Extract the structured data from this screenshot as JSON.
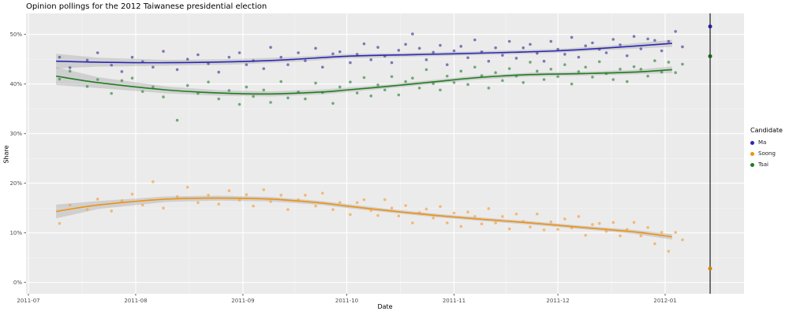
{
  "chart_data": {
    "type": "scatter",
    "title": "Opinion pollings for the 2012 Taiwanese presidential election",
    "xlabel": "Date",
    "ylabel": "Share",
    "axes": {
      "x_tick_labels": [
        "2011-07",
        "2011-08",
        "2011-09",
        "2011-10",
        "2011-11",
        "2011-12",
        "2012-01"
      ],
      "x_tick_days": [
        0,
        31,
        62,
        92,
        123,
        153,
        184
      ],
      "x_minor_days": [
        15.5,
        46.5,
        77,
        107.5,
        138,
        168.5,
        199
      ],
      "y_tick_labels": [
        "0%",
        "10%",
        "20%",
        "30%",
        "40%",
        "50%"
      ],
      "y_tick_pcts": [
        0,
        10,
        20,
        30,
        40,
        50
      ],
      "y_minor_pcts": [
        5,
        15,
        25,
        35,
        45
      ],
      "x_range_days": [
        -1,
        207
      ],
      "ylim": [
        -2.3,
        54.2
      ],
      "grid": true
    },
    "election_vline_day": 197,
    "layout": {
      "panel_bg": "#ebebeb",
      "grid_color": "#ffffff",
      "band_color": "#8f8f8f",
      "vline_color": "#3a3a3a",
      "tick_text_color": "#4d4d4d",
      "legend_position": "right"
    },
    "series": [
      {
        "name": "Ma",
        "point_color": "#55519f",
        "line_color": "#2b28b4",
        "result_color": "#23209b",
        "election_result_pct": 51.6,
        "points": [
          [
            9,
            45.4
          ],
          [
            12,
            43.3
          ],
          [
            17,
            44.8
          ],
          [
            20,
            46.3
          ],
          [
            24,
            43.8
          ],
          [
            27,
            42.5
          ],
          [
            30,
            45.4
          ],
          [
            33,
            44.5
          ],
          [
            36,
            43.4
          ],
          [
            39,
            46.6
          ],
          [
            43,
            42.9
          ],
          [
            46,
            45.0
          ],
          [
            49,
            45.9
          ],
          [
            52,
            44.1
          ],
          [
            55,
            42.4
          ],
          [
            58,
            45.4
          ],
          [
            61,
            46.3
          ],
          [
            63,
            43.9
          ],
          [
            65,
            44.7
          ],
          [
            68,
            43.1
          ],
          [
            70,
            47.4
          ],
          [
            73,
            45.4
          ],
          [
            75,
            43.9
          ],
          [
            78,
            46.3
          ],
          [
            80,
            44.7
          ],
          [
            83,
            47.2
          ],
          [
            85,
            43.4
          ],
          [
            88,
            46.1
          ],
          [
            90,
            46.5
          ],
          [
            93,
            44.3
          ],
          [
            95,
            46.0
          ],
          [
            97,
            48.1
          ],
          [
            99,
            44.9
          ],
          [
            101,
            47.4
          ],
          [
            103,
            45.6
          ],
          [
            105,
            44.3
          ],
          [
            107,
            46.8
          ],
          [
            109,
            48.0
          ],
          [
            111,
            50.1
          ],
          [
            113,
            47.2
          ],
          [
            115,
            44.9
          ],
          [
            117,
            46.4
          ],
          [
            119,
            47.8
          ],
          [
            121,
            43.9
          ],
          [
            123,
            46.7
          ],
          [
            125,
            47.6
          ],
          [
            127,
            45.3
          ],
          [
            129,
            48.9
          ],
          [
            131,
            46.5
          ],
          [
            133,
            44.6
          ],
          [
            135,
            47.3
          ],
          [
            137,
            45.8
          ],
          [
            139,
            48.6
          ],
          [
            141,
            45.2
          ],
          [
            143,
            47.3
          ],
          [
            145,
            48.0
          ],
          [
            147,
            46.2
          ],
          [
            149,
            44.6
          ],
          [
            151,
            48.6
          ],
          [
            153,
            47.0
          ],
          [
            155,
            46.0
          ],
          [
            157,
            49.4
          ],
          [
            159,
            45.4
          ],
          [
            161,
            47.7
          ],
          [
            163,
            48.3
          ],
          [
            165,
            47.0
          ],
          [
            167,
            46.3
          ],
          [
            169,
            49.0
          ],
          [
            171,
            47.9
          ],
          [
            173,
            45.7
          ],
          [
            175,
            49.6
          ],
          [
            177,
            47.1
          ],
          [
            179,
            49.1
          ],
          [
            181,
            48.8
          ],
          [
            183,
            46.7
          ],
          [
            185,
            48.6
          ],
          [
            187,
            50.6
          ],
          [
            189,
            47.5
          ]
        ],
        "smooth": [
          [
            8,
            44.6,
            1.5
          ],
          [
            20,
            44.4,
            0.9
          ],
          [
            40,
            44.3,
            0.6
          ],
          [
            60,
            44.5,
            0.55
          ],
          [
            75,
            44.9,
            0.5
          ],
          [
            92,
            45.6,
            0.45
          ],
          [
            110,
            45.9,
            0.4
          ],
          [
            123,
            46.1,
            0.4
          ],
          [
            140,
            46.4,
            0.4
          ],
          [
            153,
            46.7,
            0.4
          ],
          [
            168,
            47.3,
            0.45
          ],
          [
            186,
            48.2,
            0.7
          ]
        ]
      },
      {
        "name": "Soong",
        "point_color": "#f4a751",
        "line_color": "#ee9212",
        "result_color": "#d0860a",
        "election_result_pct": 2.8,
        "points": [
          [
            9,
            11.9
          ],
          [
            12,
            15.6
          ],
          [
            17,
            14.7
          ],
          [
            20,
            16.8
          ],
          [
            24,
            14.4
          ],
          [
            27,
            16.5
          ],
          [
            30,
            17.8
          ],
          [
            33,
            15.6
          ],
          [
            36,
            20.3
          ],
          [
            39,
            15.0
          ],
          [
            43,
            17.3
          ],
          [
            46,
            19.2
          ],
          [
            49,
            16.1
          ],
          [
            52,
            17.6
          ],
          [
            55,
            15.8
          ],
          [
            58,
            18.5
          ],
          [
            61,
            16.6
          ],
          [
            63,
            17.7
          ],
          [
            65,
            15.4
          ],
          [
            68,
            18.7
          ],
          [
            70,
            16.3
          ],
          [
            73,
            17.6
          ],
          [
            75,
            14.7
          ],
          [
            78,
            16.7
          ],
          [
            80,
            17.6
          ],
          [
            83,
            15.4
          ],
          [
            85,
            18.0
          ],
          [
            88,
            14.7
          ],
          [
            90,
            16.1
          ],
          [
            93,
            13.7
          ],
          [
            95,
            16.1
          ],
          [
            97,
            16.7
          ],
          [
            99,
            14.5
          ],
          [
            101,
            13.5
          ],
          [
            103,
            16.7
          ],
          [
            105,
            15.0
          ],
          [
            107,
            13.4
          ],
          [
            109,
            15.5
          ],
          [
            111,
            12.0
          ],
          [
            113,
            14.1
          ],
          [
            115,
            14.8
          ],
          [
            117,
            13.0
          ],
          [
            119,
            15.3
          ],
          [
            121,
            12.0
          ],
          [
            123,
            14.0
          ],
          [
            125,
            11.3
          ],
          [
            127,
            14.2
          ],
          [
            129,
            13.3
          ],
          [
            131,
            11.8
          ],
          [
            133,
            14.9
          ],
          [
            135,
            12.0
          ],
          [
            137,
            13.3
          ],
          [
            139,
            10.8
          ],
          [
            141,
            13.8
          ],
          [
            143,
            12.3
          ],
          [
            145,
            11.2
          ],
          [
            147,
            13.8
          ],
          [
            149,
            10.6
          ],
          [
            151,
            12.2
          ],
          [
            153,
            10.7
          ],
          [
            155,
            12.8
          ],
          [
            157,
            11.0
          ],
          [
            159,
            13.3
          ],
          [
            161,
            9.5
          ],
          [
            163,
            11.7
          ],
          [
            165,
            11.9
          ],
          [
            167,
            10.3
          ],
          [
            169,
            12.1
          ],
          [
            171,
            9.4
          ],
          [
            173,
            10.7
          ],
          [
            175,
            12.1
          ],
          [
            177,
            9.4
          ],
          [
            179,
            11.1
          ],
          [
            181,
            7.8
          ],
          [
            183,
            10.1
          ],
          [
            185,
            6.3
          ],
          [
            187,
            10.1
          ],
          [
            189,
            8.6
          ]
        ],
        "smooth": [
          [
            8,
            14.3,
            1.4
          ],
          [
            20,
            15.6,
            0.8
          ],
          [
            40,
            16.8,
            0.55
          ],
          [
            55,
            17.0,
            0.5
          ],
          [
            70,
            16.8,
            0.45
          ],
          [
            85,
            16.0,
            0.4
          ],
          [
            92,
            15.4,
            0.4
          ],
          [
            105,
            14.4,
            0.35
          ],
          [
            118,
            13.5,
            0.35
          ],
          [
            130,
            12.8,
            0.35
          ],
          [
            145,
            12.0,
            0.35
          ],
          [
            160,
            11.1,
            0.35
          ],
          [
            175,
            10.2,
            0.4
          ],
          [
            186,
            9.2,
            0.55
          ]
        ]
      },
      {
        "name": "Tsai",
        "point_color": "#4b8f55",
        "line_color": "#1f7d1f",
        "result_color": "#196419",
        "election_result_pct": 45.6,
        "points": [
          [
            9,
            41.0
          ],
          [
            12,
            42.6
          ],
          [
            17,
            39.5
          ],
          [
            20,
            40.9
          ],
          [
            24,
            38.1
          ],
          [
            27,
            40.7
          ],
          [
            30,
            41.2
          ],
          [
            33,
            38.5
          ],
          [
            36,
            39.4
          ],
          [
            39,
            37.4
          ],
          [
            43,
            32.7
          ],
          [
            46,
            39.7
          ],
          [
            49,
            38.1
          ],
          [
            52,
            40.4
          ],
          [
            55,
            37.0
          ],
          [
            58,
            38.7
          ],
          [
            61,
            35.9
          ],
          [
            63,
            39.4
          ],
          [
            65,
            37.5
          ],
          [
            68,
            38.8
          ],
          [
            70,
            36.3
          ],
          [
            73,
            40.5
          ],
          [
            75,
            37.2
          ],
          [
            78,
            38.4
          ],
          [
            80,
            37.0
          ],
          [
            83,
            40.2
          ],
          [
            85,
            38.3
          ],
          [
            88,
            36.1
          ],
          [
            90,
            39.4
          ],
          [
            93,
            40.4
          ],
          [
            95,
            38.2
          ],
          [
            97,
            41.3
          ],
          [
            99,
            37.6
          ],
          [
            101,
            39.8
          ],
          [
            103,
            38.8
          ],
          [
            105,
            41.5
          ],
          [
            107,
            37.8
          ],
          [
            109,
            40.5
          ],
          [
            111,
            41.2
          ],
          [
            113,
            39.2
          ],
          [
            115,
            42.9
          ],
          [
            117,
            40.1
          ],
          [
            119,
            38.8
          ],
          [
            121,
            41.6
          ],
          [
            123,
            40.3
          ],
          [
            125,
            42.6
          ],
          [
            127,
            39.9
          ],
          [
            129,
            43.4
          ],
          [
            131,
            41.7
          ],
          [
            133,
            39.2
          ],
          [
            135,
            42.3
          ],
          [
            137,
            40.7
          ],
          [
            139,
            43.1
          ],
          [
            141,
            41.6
          ],
          [
            143,
            40.3
          ],
          [
            145,
            44.4
          ],
          [
            147,
            42.6
          ],
          [
            149,
            40.9
          ],
          [
            151,
            43.0
          ],
          [
            153,
            41.5
          ],
          [
            155,
            43.9
          ],
          [
            157,
            40.0
          ],
          [
            159,
            42.5
          ],
          [
            161,
            43.4
          ],
          [
            163,
            41.4
          ],
          [
            165,
            44.5
          ],
          [
            167,
            42.1
          ],
          [
            169,
            40.9
          ],
          [
            171,
            43.0
          ],
          [
            173,
            40.5
          ],
          [
            175,
            43.5
          ],
          [
            177,
            43.0
          ],
          [
            179,
            41.6
          ],
          [
            181,
            44.7
          ],
          [
            183,
            42.4
          ],
          [
            185,
            44.4
          ],
          [
            187,
            42.3
          ],
          [
            189,
            44.0
          ]
        ],
        "smooth": [
          [
            8,
            41.6,
            1.8
          ],
          [
            20,
            40.3,
            1.1
          ],
          [
            40,
            38.8,
            0.7
          ],
          [
            55,
            38.2,
            0.55
          ],
          [
            70,
            38.0,
            0.5
          ],
          [
            85,
            38.4,
            0.5
          ],
          [
            92,
            38.8,
            0.45
          ],
          [
            105,
            39.6,
            0.4
          ],
          [
            118,
            40.5,
            0.4
          ],
          [
            130,
            41.3,
            0.4
          ],
          [
            145,
            41.9,
            0.4
          ],
          [
            160,
            42.1,
            0.4
          ],
          [
            175,
            42.4,
            0.45
          ],
          [
            186,
            42.9,
            0.65
          ]
        ]
      }
    ],
    "legend": {
      "title": "Candidate",
      "items": [
        {
          "label": "Ma",
          "color": "#2b28b4"
        },
        {
          "label": "Soong",
          "color": "#ee9212"
        },
        {
          "label": "Tsai",
          "color": "#1f7d1f"
        }
      ]
    }
  }
}
